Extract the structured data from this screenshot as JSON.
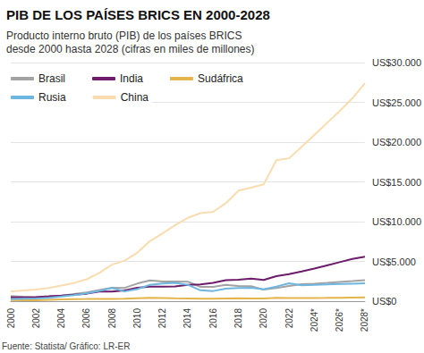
{
  "chart_data": {
    "type": "line",
    "title": "PIB DE LOS PAÍSES BRICS EN 2000-2028",
    "subtitle": "Producto interno bruto (PIB) de los países BRICS\ndesde 2000 hasta 2028 (cifras en miles de millones)",
    "source": "Fuente: Statista/ Gráfico: LR-ER",
    "categories": [
      "2000",
      null,
      "2002",
      null,
      "2004",
      null,
      "2006",
      null,
      "2008",
      null,
      "2010",
      null,
      "2012",
      null,
      "2014",
      null,
      "2016",
      null,
      "2018",
      null,
      "2020",
      null,
      "2022",
      null,
      "2024*",
      null,
      "2026*",
      null,
      "2028*"
    ],
    "series": [
      {
        "name": "Brasil",
        "color": "#a3a3a3",
        "values": [
          655,
          559,
          509,
          558,
          669,
          892,
          1108,
          1397,
          1696,
          1667,
          2209,
          2616,
          2465,
          2473,
          2456,
          1802,
          1796,
          2063,
          1917,
          1873,
          1449,
          1650,
          1920,
          2130,
          2200,
          2300,
          2420,
          2530,
          2650
        ]
      },
      {
        "name": "India",
        "color": "#6d1b6b",
        "values": [
          468,
          485,
          515,
          608,
          709,
          820,
          940,
          1217,
          1199,
          1342,
          1676,
          1823,
          1828,
          1857,
          2039,
          2104,
          2295,
          2651,
          2702,
          2831,
          2668,
          3150,
          3390,
          3740,
          4100,
          4500,
          4900,
          5300,
          5600
        ]
      },
      {
        "name": "Sudáfrica",
        "color": "#e3b54a",
        "values": [
          136,
          121,
          115,
          175,
          229,
          258,
          272,
          293,
          287,
          297,
          375,
          416,
          396,
          367,
          351,
          318,
          296,
          349,
          368,
          351,
          338,
          420,
          405,
          380,
          400,
          410,
          430,
          450,
          470
        ]
      },
      {
        "name": "Rusia",
        "color": "#6db6e0",
        "values": [
          260,
          307,
          345,
          430,
          591,
          764,
          990,
          1300,
          1661,
          1223,
          1525,
          2046,
          2208,
          2293,
          2059,
          1363,
          1277,
          1575,
          1653,
          1693,
          1489,
          1837,
          2240,
          2000,
          2050,
          2100,
          2150,
          2200,
          2250
        ]
      },
      {
        "name": "China",
        "color": "#f9ddb0",
        "values": [
          1211,
          1339,
          1471,
          1660,
          1955,
          2286,
          2752,
          3550,
          4594,
          5101,
          6087,
          7552,
          8532,
          9570,
          10476,
          11062,
          11233,
          12310,
          13895,
          14280,
          14688,
          17734,
          17963,
          19400,
          20900,
          22400,
          23900,
          25500,
          27400
        ]
      }
    ],
    "ylim": [
      0,
      30000
    ],
    "yticks": [
      {
        "value": 0,
        "label": "US$0"
      },
      {
        "value": 5000,
        "label": "US$5.000"
      },
      {
        "value": 10000,
        "label": "US$10.000"
      },
      {
        "value": 15000,
        "label": "US$15.000"
      },
      {
        "value": 20000,
        "label": "US$20.000"
      },
      {
        "value": 25000,
        "label": "US$25.000"
      },
      {
        "value": 30000,
        "label": "US$30.000"
      }
    ],
    "grid": true
  }
}
